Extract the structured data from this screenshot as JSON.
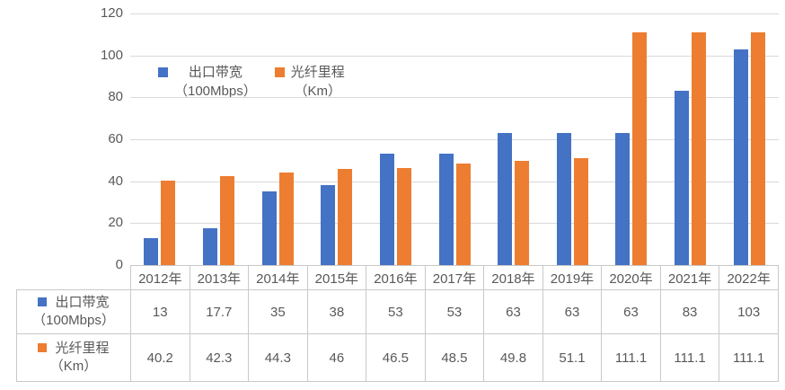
{
  "chart_data": {
    "type": "bar",
    "title": "",
    "xlabel": "",
    "ylabel": "",
    "categories": [
      "2012年",
      "2013年",
      "2014年",
      "2015年",
      "2016年",
      "2017年",
      "2018年",
      "2019年",
      "2020年",
      "2021年",
      "2022年"
    ],
    "series": [
      {
        "name": "出口带宽",
        "unit": "（100Mbps）",
        "color": "#4472C4",
        "values": [
          13,
          17.7,
          35,
          38,
          53,
          53,
          63,
          63,
          63,
          83,
          103
        ]
      },
      {
        "name": "光纤里程",
        "unit": "（Km）",
        "color": "#ED7D31",
        "values": [
          40.2,
          42.3,
          44.3,
          46,
          46.5,
          48.5,
          49.8,
          51.1,
          111.1,
          111.1,
          111.1
        ]
      }
    ],
    "ylim": [
      0,
      120
    ],
    "yticks": [
      0,
      20,
      40,
      60,
      80,
      100,
      120
    ],
    "grid": true,
    "legend_position": "inside-top-left",
    "data_table_shown": true
  },
  "colors": {
    "gridline": "#D9D9D9",
    "table_border": "#C9C9C9",
    "text": "#595959"
  }
}
